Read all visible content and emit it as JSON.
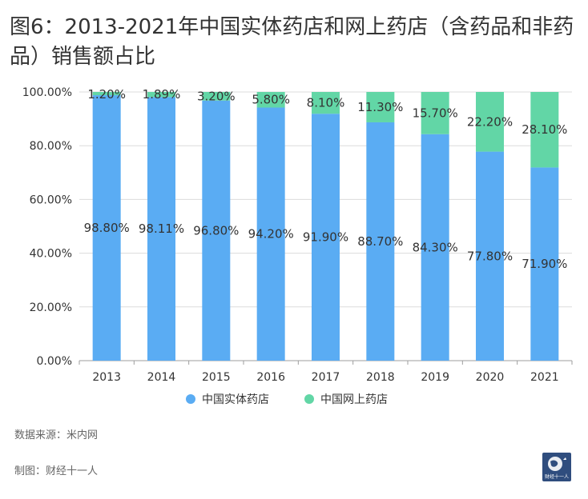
{
  "title": "图6：2013-2021年中国实体药店和网上药店（含药品和非药品）销售额占比",
  "chart_data": {
    "type": "bar",
    "stacked": true,
    "categories": [
      "2013",
      "2014",
      "2015",
      "2016",
      "2017",
      "2018",
      "2019",
      "2020",
      "2021"
    ],
    "series": [
      {
        "name": "中国实体药店",
        "color": "#5aacf3",
        "values": [
          98.8,
          98.11,
          96.8,
          94.2,
          91.9,
          88.7,
          84.3,
          77.8,
          71.9
        ],
        "labels": [
          "98.80%",
          "98.11%",
          "96.80%",
          "94.20%",
          "91.90%",
          "88.70%",
          "84.30%",
          "77.80%",
          "71.90%"
        ]
      },
      {
        "name": "中国网上药店",
        "color": "#62d6a6",
        "values": [
          1.2,
          1.89,
          3.2,
          5.8,
          8.1,
          11.3,
          15.7,
          22.2,
          28.1
        ],
        "labels": [
          "1.20%",
          "1.89%",
          "3.20%",
          "5.80%",
          "8.10%",
          "11.30%",
          "15.70%",
          "22.20%",
          "28.10%"
        ]
      }
    ],
    "yticks": [
      "0.00%",
      "20.00%",
      "40.00%",
      "60.00%",
      "80.00%",
      "100.00%"
    ],
    "ylim": [
      0,
      100
    ],
    "grid": true,
    "legend": "bottom-center",
    "xlabel": "",
    "ylabel": ""
  },
  "footer": {
    "source": "数据来源：米内网",
    "maker": "制图：财经十一人"
  },
  "logo": {
    "text": "财经十一人",
    "bg_color": "#2f4d7e"
  }
}
